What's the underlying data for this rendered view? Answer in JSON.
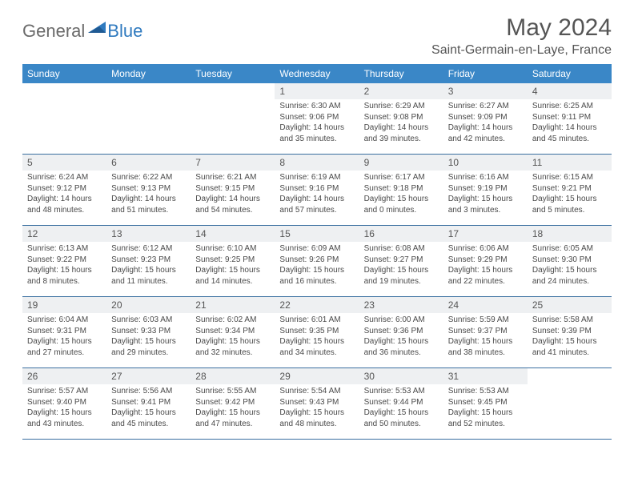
{
  "logo": {
    "general": "General",
    "blue": "Blue"
  },
  "title": "May 2024",
  "location": "Saint-Germain-en-Laye, France",
  "weekdays": [
    "Sunday",
    "Monday",
    "Tuesday",
    "Wednesday",
    "Thursday",
    "Friday",
    "Saturday"
  ],
  "colors": {
    "header_bg": "#3a87c7",
    "header_text": "#ffffff",
    "daynum_bg": "#eef0f2",
    "text": "#555555",
    "row_border": "#3a6fa0",
    "logo_gray": "#6a6a6a",
    "logo_blue": "#2f7abf"
  },
  "weeks": [
    [
      {
        "n": "",
        "lines": []
      },
      {
        "n": "",
        "lines": []
      },
      {
        "n": "",
        "lines": []
      },
      {
        "n": "1",
        "lines": [
          "Sunrise: 6:30 AM",
          "Sunset: 9:06 PM",
          "Daylight: 14 hours",
          "and 35 minutes."
        ]
      },
      {
        "n": "2",
        "lines": [
          "Sunrise: 6:29 AM",
          "Sunset: 9:08 PM",
          "Daylight: 14 hours",
          "and 39 minutes."
        ]
      },
      {
        "n": "3",
        "lines": [
          "Sunrise: 6:27 AM",
          "Sunset: 9:09 PM",
          "Daylight: 14 hours",
          "and 42 minutes."
        ]
      },
      {
        "n": "4",
        "lines": [
          "Sunrise: 6:25 AM",
          "Sunset: 9:11 PM",
          "Daylight: 14 hours",
          "and 45 minutes."
        ]
      }
    ],
    [
      {
        "n": "5",
        "lines": [
          "Sunrise: 6:24 AM",
          "Sunset: 9:12 PM",
          "Daylight: 14 hours",
          "and 48 minutes."
        ]
      },
      {
        "n": "6",
        "lines": [
          "Sunrise: 6:22 AM",
          "Sunset: 9:13 PM",
          "Daylight: 14 hours",
          "and 51 minutes."
        ]
      },
      {
        "n": "7",
        "lines": [
          "Sunrise: 6:21 AM",
          "Sunset: 9:15 PM",
          "Daylight: 14 hours",
          "and 54 minutes."
        ]
      },
      {
        "n": "8",
        "lines": [
          "Sunrise: 6:19 AM",
          "Sunset: 9:16 PM",
          "Daylight: 14 hours",
          "and 57 minutes."
        ]
      },
      {
        "n": "9",
        "lines": [
          "Sunrise: 6:17 AM",
          "Sunset: 9:18 PM",
          "Daylight: 15 hours",
          "and 0 minutes."
        ]
      },
      {
        "n": "10",
        "lines": [
          "Sunrise: 6:16 AM",
          "Sunset: 9:19 PM",
          "Daylight: 15 hours",
          "and 3 minutes."
        ]
      },
      {
        "n": "11",
        "lines": [
          "Sunrise: 6:15 AM",
          "Sunset: 9:21 PM",
          "Daylight: 15 hours",
          "and 5 minutes."
        ]
      }
    ],
    [
      {
        "n": "12",
        "lines": [
          "Sunrise: 6:13 AM",
          "Sunset: 9:22 PM",
          "Daylight: 15 hours",
          "and 8 minutes."
        ]
      },
      {
        "n": "13",
        "lines": [
          "Sunrise: 6:12 AM",
          "Sunset: 9:23 PM",
          "Daylight: 15 hours",
          "and 11 minutes."
        ]
      },
      {
        "n": "14",
        "lines": [
          "Sunrise: 6:10 AM",
          "Sunset: 9:25 PM",
          "Daylight: 15 hours",
          "and 14 minutes."
        ]
      },
      {
        "n": "15",
        "lines": [
          "Sunrise: 6:09 AM",
          "Sunset: 9:26 PM",
          "Daylight: 15 hours",
          "and 16 minutes."
        ]
      },
      {
        "n": "16",
        "lines": [
          "Sunrise: 6:08 AM",
          "Sunset: 9:27 PM",
          "Daylight: 15 hours",
          "and 19 minutes."
        ]
      },
      {
        "n": "17",
        "lines": [
          "Sunrise: 6:06 AM",
          "Sunset: 9:29 PM",
          "Daylight: 15 hours",
          "and 22 minutes."
        ]
      },
      {
        "n": "18",
        "lines": [
          "Sunrise: 6:05 AM",
          "Sunset: 9:30 PM",
          "Daylight: 15 hours",
          "and 24 minutes."
        ]
      }
    ],
    [
      {
        "n": "19",
        "lines": [
          "Sunrise: 6:04 AM",
          "Sunset: 9:31 PM",
          "Daylight: 15 hours",
          "and 27 minutes."
        ]
      },
      {
        "n": "20",
        "lines": [
          "Sunrise: 6:03 AM",
          "Sunset: 9:33 PM",
          "Daylight: 15 hours",
          "and 29 minutes."
        ]
      },
      {
        "n": "21",
        "lines": [
          "Sunrise: 6:02 AM",
          "Sunset: 9:34 PM",
          "Daylight: 15 hours",
          "and 32 minutes."
        ]
      },
      {
        "n": "22",
        "lines": [
          "Sunrise: 6:01 AM",
          "Sunset: 9:35 PM",
          "Daylight: 15 hours",
          "and 34 minutes."
        ]
      },
      {
        "n": "23",
        "lines": [
          "Sunrise: 6:00 AM",
          "Sunset: 9:36 PM",
          "Daylight: 15 hours",
          "and 36 minutes."
        ]
      },
      {
        "n": "24",
        "lines": [
          "Sunrise: 5:59 AM",
          "Sunset: 9:37 PM",
          "Daylight: 15 hours",
          "and 38 minutes."
        ]
      },
      {
        "n": "25",
        "lines": [
          "Sunrise: 5:58 AM",
          "Sunset: 9:39 PM",
          "Daylight: 15 hours",
          "and 41 minutes."
        ]
      }
    ],
    [
      {
        "n": "26",
        "lines": [
          "Sunrise: 5:57 AM",
          "Sunset: 9:40 PM",
          "Daylight: 15 hours",
          "and 43 minutes."
        ]
      },
      {
        "n": "27",
        "lines": [
          "Sunrise: 5:56 AM",
          "Sunset: 9:41 PM",
          "Daylight: 15 hours",
          "and 45 minutes."
        ]
      },
      {
        "n": "28",
        "lines": [
          "Sunrise: 5:55 AM",
          "Sunset: 9:42 PM",
          "Daylight: 15 hours",
          "and 47 minutes."
        ]
      },
      {
        "n": "29",
        "lines": [
          "Sunrise: 5:54 AM",
          "Sunset: 9:43 PM",
          "Daylight: 15 hours",
          "and 48 minutes."
        ]
      },
      {
        "n": "30",
        "lines": [
          "Sunrise: 5:53 AM",
          "Sunset: 9:44 PM",
          "Daylight: 15 hours",
          "and 50 minutes."
        ]
      },
      {
        "n": "31",
        "lines": [
          "Sunrise: 5:53 AM",
          "Sunset: 9:45 PM",
          "Daylight: 15 hours",
          "and 52 minutes."
        ]
      },
      {
        "n": "",
        "lines": []
      }
    ]
  ]
}
